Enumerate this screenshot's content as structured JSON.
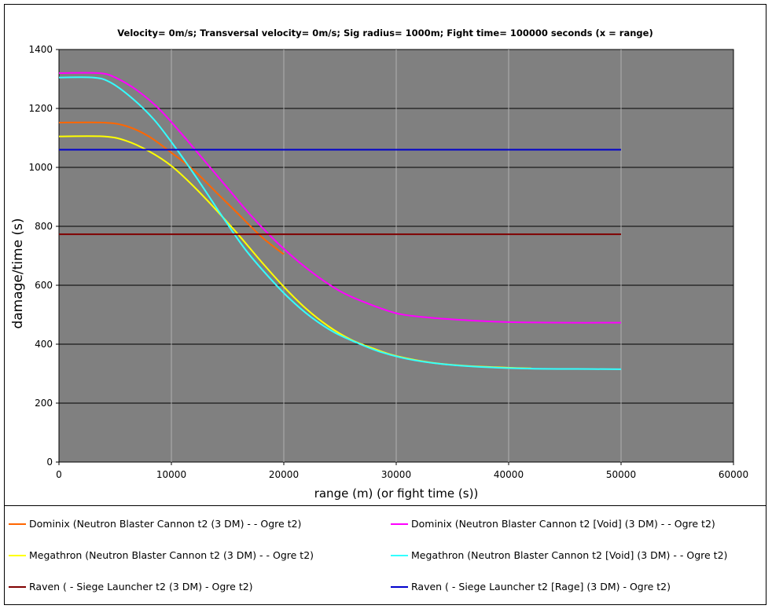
{
  "chart_data": {
    "type": "line",
    "title": "Velocity= 0m/s; Transversal velocity= 0m/s; Sig radius= 1000m; Fight time= 100000 seconds (x = range)",
    "xlabel": "range (m) (or fight time (s))",
    "ylabel": "damage/time (s)",
    "xlim": [
      0,
      60000
    ],
    "ylim": [
      0,
      1400
    ],
    "xticks": [
      0,
      10000,
      20000,
      30000,
      40000,
      50000,
      60000
    ],
    "yticks": [
      0,
      200,
      400,
      600,
      800,
      1000,
      1200,
      1400
    ],
    "grid": true,
    "plot_background": "#808080",
    "legend_position": "bottom",
    "series": [
      {
        "name": "Dominix (Neutron Blaster Cannon t2 (3 DM)  -  - Ogre t2)",
        "color": "#ff6600",
        "x": [
          0,
          4000,
          6000,
          8000,
          10000,
          12000,
          14000,
          16000,
          18000,
          20000
        ],
        "y": [
          1152,
          1152,
          1140,
          1105,
          1050,
          990,
          915,
          840,
          765,
          705
        ]
      },
      {
        "name": "Dominix (Neutron Blaster Cannon t2 [Void] (3 DM)  -  - Ogre t2)",
        "color": "#ff00ff",
        "x": [
          0,
          3500,
          5000,
          7000,
          9000,
          11000,
          13000,
          15000,
          17000,
          19000,
          21000,
          23000,
          25000,
          27000,
          30000,
          33000,
          36000,
          40000,
          45000,
          50000
        ],
        "y": [
          1320,
          1320,
          1305,
          1260,
          1195,
          1110,
          1020,
          930,
          840,
          760,
          690,
          630,
          580,
          545,
          505,
          490,
          482,
          475,
          473,
          473
        ]
      },
      {
        "name": "Megathron (Neutron Blaster Cannon t2 (3 DM)  -  - Ogre t2)",
        "color": "#ffff00",
        "x": [
          0,
          4000,
          6000,
          8000,
          10000,
          12000,
          14000,
          16000,
          18000,
          20000,
          22000,
          24000,
          26000,
          28000,
          30000,
          33000,
          36000,
          40000,
          42000
        ],
        "y": [
          1105,
          1105,
          1090,
          1055,
          1005,
          935,
          855,
          770,
          680,
          595,
          520,
          460,
          415,
          385,
          360,
          338,
          327,
          320,
          318
        ]
      },
      {
        "name": "Megathron (Neutron Blaster Cannon t2 [Void] (3 DM)  -  - Ogre t2)",
        "color": "#33ffff",
        "x": [
          0,
          3000,
          4500,
          6500,
          8500,
          10500,
          12500,
          14500,
          16500,
          18500,
          20500,
          22500,
          24500,
          26500,
          28500,
          31000,
          34000,
          38000,
          42000,
          46000,
          50000
        ],
        "y": [
          1305,
          1305,
          1290,
          1235,
          1160,
          1060,
          950,
          835,
          725,
          635,
          555,
          490,
          440,
          405,
          375,
          350,
          333,
          322,
          317,
          316,
          315
        ]
      },
      {
        "name": "Raven ( - Siege Launcher t2 (3 DM) - Ogre t2)",
        "color": "#800000",
        "x": [
          0,
          50000
        ],
        "y": [
          773,
          773
        ]
      },
      {
        "name": "Raven ( - Siege Launcher t2 [Rage] (3 DM) - Ogre t2)",
        "color": "#0000cc",
        "x": [
          0,
          50000
        ],
        "y": [
          1060,
          1060
        ]
      }
    ]
  }
}
